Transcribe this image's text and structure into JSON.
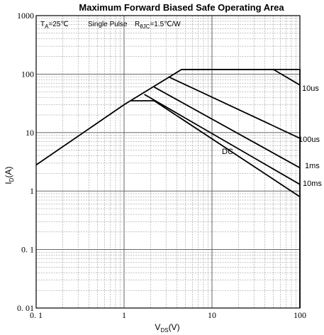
{
  "chart_data": {
    "type": "line",
    "title": "Maximum Forward Biased Safe Operating Area",
    "x_scale": "log",
    "y_scale": "log",
    "xlim": [
      0.1,
      100
    ],
    "ylim": [
      0.01,
      1000
    ],
    "grid": true,
    "x_ticks": [
      "0. 1",
      "1",
      "10",
      "100"
    ],
    "y_ticks": [
      "1000",
      "100",
      "10",
      "1",
      "0. 1",
      "0. 01"
    ],
    "xlabel": {
      "main": "V",
      "sub": "DS",
      "suffix": "(V)"
    },
    "ylabel": {
      "main": "I",
      "sub": "D",
      "suffix": "(A)"
    },
    "annotations": {
      "ta": {
        "main": "T",
        "sub": "A",
        "rest": "=25℃"
      },
      "pulse": "Single Pulse",
      "rth": {
        "main": "R",
        "sub": "θJC",
        "rest": "=1.5℃/W"
      }
    },
    "envelope": {
      "x": [
        0.1,
        1,
        4.5,
        100,
        100
      ],
      "y": [
        2.8,
        30,
        120,
        120,
        0.01
      ]
    },
    "series": [
      {
        "name": "10us",
        "x": [
          4.5,
          50,
          100
        ],
        "y": [
          120,
          120,
          65
        ]
      },
      {
        "name": "100us",
        "x": [
          3.2,
          100
        ],
        "y": [
          90,
          8
        ]
      },
      {
        "name": "1ms",
        "x": [
          2.2,
          100
        ],
        "y": [
          60,
          2.5
        ]
      },
      {
        "name": "10ms",
        "x": [
          1.7,
          100
        ],
        "y": [
          45,
          1.3
        ]
      },
      {
        "name": "DC",
        "x": [
          1.2,
          2.2,
          100
        ],
        "y": [
          35,
          35,
          0.8
        ]
      }
    ]
  }
}
